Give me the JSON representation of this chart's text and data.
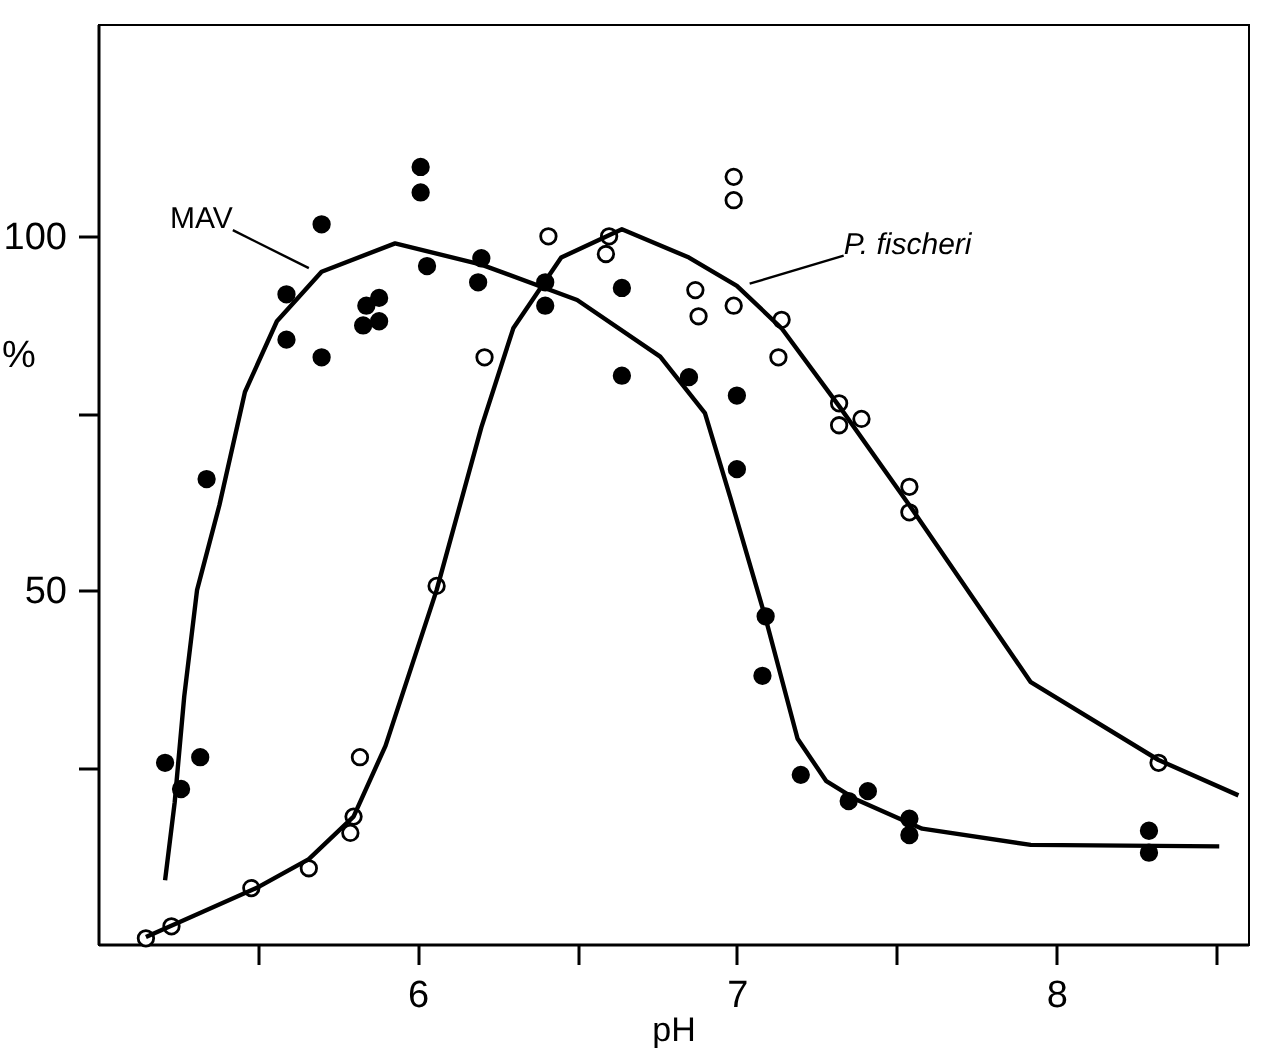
{
  "chart_data": {
    "type": "scatter",
    "xlabel": "pH",
    "ylabel": "%",
    "xlim": [
      5,
      8.6
    ],
    "ylim": [
      0,
      130
    ],
    "xticks": [
      {
        "value": 5.5,
        "label": null
      },
      6,
      {
        "value": 6.5,
        "label": null
      },
      7,
      {
        "value": 7.5,
        "label": null
      },
      8,
      {
        "value": 8.5,
        "label": null
      }
    ],
    "yticks": [
      {
        "value": 25,
        "label": null
      },
      50,
      {
        "value": 75,
        "label": null
      },
      100
    ],
    "grid": false,
    "annotations": [
      {
        "text": "MAV",
        "x": 5.66,
        "y": 95.5
      },
      {
        "text": "P. fischeri",
        "x": 7.04,
        "y": 93.3
      }
    ],
    "series": [
      {
        "marker": "circle",
        "color": "#000000",
        "x": [
          5.21,
          5.26,
          5.32,
          5.34,
          5.59,
          5.59,
          5.7,
          5.7,
          5.84,
          5.88,
          5.83,
          5.88,
          6.01,
          6.01,
          6.03,
          6.2,
          6.19,
          6.4,
          6.4,
          6.64,
          6.64,
          6.85,
          7.0,
          7.0,
          7.09,
          7.08,
          7.2,
          7.35,
          7.41,
          7.54,
          7.54,
          8.29,
          8.29
        ],
        "values": [
          25.6,
          21.9,
          26.4,
          65.7,
          91.8,
          85.4,
          101.7,
          82.9,
          90.2,
          91.3,
          87.4,
          88.0,
          109.8,
          106.2,
          95.8,
          96.9,
          93.5,
          93.5,
          90.2,
          92.7,
          80.3,
          80.1,
          77.5,
          67.1,
          46.3,
          37.9,
          23.9,
          20.2,
          21.6,
          17.7,
          15.4,
          16.0,
          12.9
        ]
      },
      {
        "marker": "circle",
        "color": "#ffffff",
        "x": [
          5.15,
          5.23,
          5.48,
          5.66,
          5.79,
          5.8,
          5.82,
          6.06,
          6.21,
          6.41,
          6.6,
          6.59,
          6.87,
          6.88,
          6.99,
          6.99,
          6.99,
          7.14,
          7.13,
          7.32,
          7.32,
          7.39,
          7.54,
          7.54,
          8.32
        ],
        "values": [
          0.8,
          2.5,
          7.9,
          10.7,
          15.7,
          18.0,
          26.4,
          50.6,
          82.9,
          100,
          100,
          97.5,
          92.4,
          88.7,
          108.4,
          105.1,
          90.2,
          88.2,
          82.9,
          76.4,
          73.3,
          74.2,
          64.6,
          61.0,
          25.6
        ]
      },
      {
        "type": "line",
        "marker": "none",
        "line_style": "solid",
        "color": "#000000",
        "x": [
          5.21,
          5.24,
          5.27,
          5.31,
          5.38,
          5.46,
          5.56,
          5.7,
          5.93,
          6.2,
          6.5,
          6.76,
          6.9,
          6.98,
          7.09,
          7.19,
          7.28,
          7.37,
          7.58,
          7.92,
          8.51
        ],
        "values": [
          9,
          20,
          35,
          50,
          62,
          78,
          88,
          95,
          99,
          96,
          91,
          83,
          75,
          63,
          46,
          29,
          23,
          20.5,
          16.3,
          14,
          13.8
        ]
      },
      {
        "type": "line",
        "marker": "none",
        "line_style": "solid",
        "color": "#000000",
        "x": [
          5.15,
          5.3,
          5.5,
          5.66,
          5.8,
          5.9,
          6.06,
          6.2,
          6.3,
          6.45,
          6.64,
          6.85,
          7.0,
          7.14,
          7.32,
          7.54,
          7.92,
          8.32,
          8.57
        ],
        "values": [
          1,
          4,
          8,
          12,
          18,
          28,
          50,
          73,
          87,
          97,
          101,
          97,
          93,
          87,
          76,
          62,
          37,
          26,
          21
        ]
      }
    ]
  }
}
